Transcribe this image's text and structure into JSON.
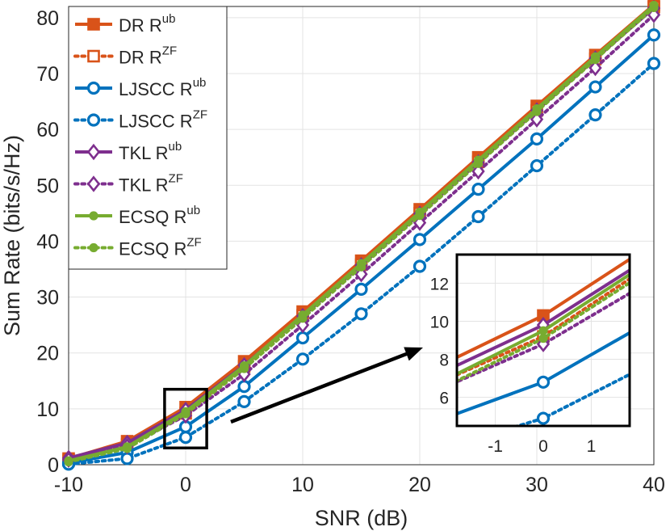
{
  "chart_data": {
    "type": "line",
    "xlabel": "SNR (dB)",
    "ylabel": "Sum Rate (bits/s/Hz)",
    "xlim": [
      -10,
      40
    ],
    "ylim": [
      0,
      82
    ],
    "xticks": [
      -10,
      0,
      10,
      20,
      30,
      40
    ],
    "yticks": [
      0,
      10,
      20,
      30,
      40,
      50,
      60,
      70,
      80
    ],
    "grid": true,
    "legend_position": "top-left",
    "x": [
      -10,
      -5,
      0,
      5,
      10,
      15,
      20,
      25,
      30,
      35,
      40
    ],
    "series": [
      {
        "name_base": "DR R",
        "name_sup": "ub",
        "color": "#D95319",
        "style": "solid",
        "marker": "square",
        "values": [
          1.1,
          4.2,
          10.3,
          18.5,
          27.4,
          36.5,
          45.7,
          55.0,
          64.2,
          73.3,
          82.3
        ]
      },
      {
        "name_base": "DR R",
        "name_sup": "ZF",
        "color": "#D95319",
        "style": "dotted",
        "marker": "square",
        "values": [
          0.8,
          3.6,
          9.2,
          17.6,
          26.7,
          35.8,
          45.0,
          54.2,
          63.4,
          72.6,
          81.9
        ]
      },
      {
        "name_base": "LJSCC R",
        "name_sup": "ub",
        "color": "#0072BD",
        "style": "solid",
        "marker": "circle",
        "values": [
          0.3,
          2.2,
          6.8,
          14.0,
          22.7,
          31.4,
          40.3,
          49.3,
          58.3,
          67.6,
          76.9
        ]
      },
      {
        "name_base": "LJSCC R",
        "name_sup": "ZF",
        "color": "#0072BD",
        "style": "dotted",
        "marker": "circle",
        "values": [
          0.1,
          1.1,
          4.9,
          11.3,
          18.9,
          27.0,
          35.5,
          44.4,
          53.5,
          62.6,
          71.8
        ]
      },
      {
        "name_base": "TKL R",
        "name_sup": "ub",
        "color": "#7E2F8E",
        "style": "solid",
        "marker": "diamond",
        "values": [
          1.2,
          3.9,
          9.8,
          17.8,
          26.6,
          35.7,
          44.9,
          54.1,
          63.4,
          72.7,
          81.7
        ]
      },
      {
        "name_base": "TKL R",
        "name_sup": "ZF",
        "color": "#7E2F8E",
        "style": "dotted",
        "marker": "diamond",
        "values": [
          0.9,
          3.3,
          8.8,
          16.2,
          25.0,
          34.1,
          43.3,
          52.5,
          61.8,
          71.0,
          80.5
        ]
      },
      {
        "name_base": "ECSQ R",
        "name_sup": "ub",
        "color": "#77AC30",
        "style": "solid",
        "marker": "dot",
        "values": [
          0.7,
          3.2,
          9.5,
          17.7,
          26.8,
          36.0,
          45.2,
          54.5,
          63.7,
          73.0,
          82.2
        ]
      },
      {
        "name_base": "ECSQ R",
        "name_sup": "ZF",
        "color": "#77AC30",
        "style": "dotted",
        "marker": "dot",
        "values": [
          0.5,
          2.9,
          9.1,
          17.2,
          26.2,
          35.4,
          44.6,
          53.9,
          63.2,
          72.5,
          81.8
        ]
      }
    ],
    "inset": {
      "xlim": [
        -1.8,
        1.8
      ],
      "ylim": [
        4.5,
        13.5
      ],
      "xticks": [
        -1,
        0,
        1
      ],
      "yticks": [
        6,
        8,
        10,
        12
      ],
      "source_box": {
        "xlim": [
          -1.8,
          1.8
        ],
        "ylim": [
          3,
          13.5
        ]
      }
    }
  }
}
